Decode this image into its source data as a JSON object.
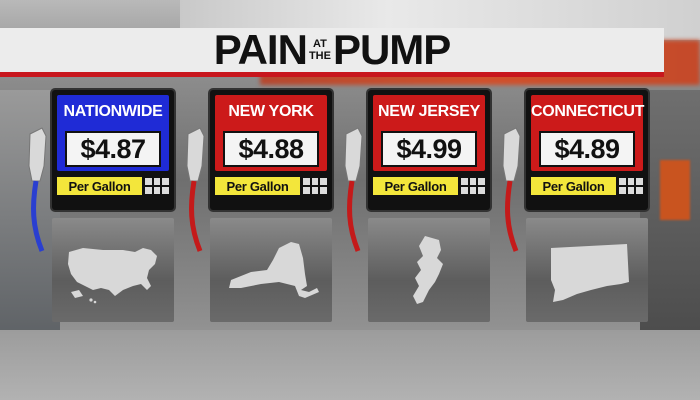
{
  "title": {
    "part1": "PAIN",
    "small_top": "AT",
    "small_bottom": "THE",
    "part2": "PUMP"
  },
  "cards": [
    {
      "label": "NATIONWIDE",
      "price": "$4.87",
      "unit": "Per Gallon",
      "header_color": "#1f2bd6",
      "icon": "usa-map-icon"
    },
    {
      "label": "NEW YORK",
      "price": "$4.88",
      "unit": "Per Gallon",
      "header_color": "#cc1a1a",
      "icon": "new-york-map-icon"
    },
    {
      "label": "NEW JERSEY",
      "price": "$4.99",
      "unit": "Per Gallon",
      "header_color": "#cc1a1a",
      "icon": "new-jersey-map-icon"
    },
    {
      "label": "CONNECTICUT",
      "price": "$4.89",
      "unit": "Per Gallon",
      "header_color": "#cc1a1a",
      "icon": "connecticut-map-icon"
    }
  ]
}
